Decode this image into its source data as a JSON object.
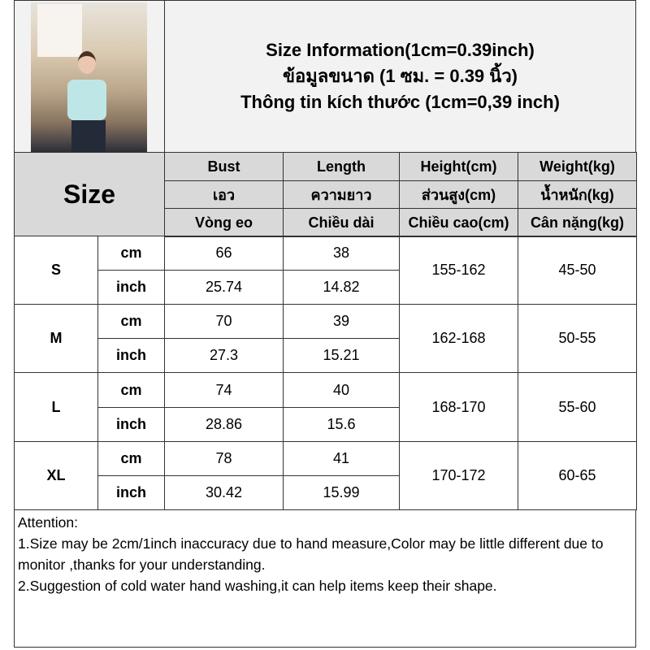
{
  "title": {
    "line1": "Size Information(1cm=0.39inch)",
    "line2": "ข้อมูลขนาด (1 ซม. = 0.39 นิ้ว)",
    "line3": "Thông tin kích thước (1cm=0,39 inch)"
  },
  "header": {
    "size_label": "Size",
    "columns": [
      {
        "en": "Bust",
        "th": "เอว",
        "vi": "Vòng eo"
      },
      {
        "en": "Length",
        "th": "ความยาว",
        "vi": "Chiều dài"
      },
      {
        "en": "Height(cm)",
        "th": "ส่วนสูง(cm)",
        "vi": "Chiều cao(cm)"
      },
      {
        "en": "Weight(kg)",
        "th": "น้ำหนัก(kg)",
        "vi": "Cân nặng(kg)"
      }
    ]
  },
  "rows": [
    {
      "size": "S",
      "cm_label": "cm",
      "inch_label": "inch",
      "bust_cm": "66",
      "length_cm": "38",
      "bust_inch": "25.74",
      "length_inch": "14.82",
      "height": "155-162",
      "weight": "45-50"
    },
    {
      "size": "M",
      "cm_label": "cm",
      "inch_label": "inch",
      "bust_cm": "70",
      "length_cm": "39",
      "bust_inch": "27.3",
      "length_inch": "15.21",
      "height": "162-168",
      "weight": "50-55"
    },
    {
      "size": "L",
      "cm_label": "cm",
      "inch_label": "inch",
      "bust_cm": "74",
      "length_cm": "40",
      "bust_inch": "28.86",
      "length_inch": "15.6",
      "height": "168-170",
      "weight": "55-60"
    },
    {
      "size": "XL",
      "cm_label": "cm",
      "inch_label": "inch",
      "bust_cm": "78",
      "length_cm": "41",
      "bust_inch": "30.42",
      "length_inch": "15.99",
      "height": "170-172",
      "weight": "60-65"
    }
  ],
  "notes": {
    "heading": "Attention:",
    "line1": "1.Size may be 2cm/1inch inaccuracy due to hand measure,Color may be little different due to monitor ,thanks for your understanding.",
    "line2": "2.Suggestion of cold water hand washing,it can help items keep their shape."
  }
}
